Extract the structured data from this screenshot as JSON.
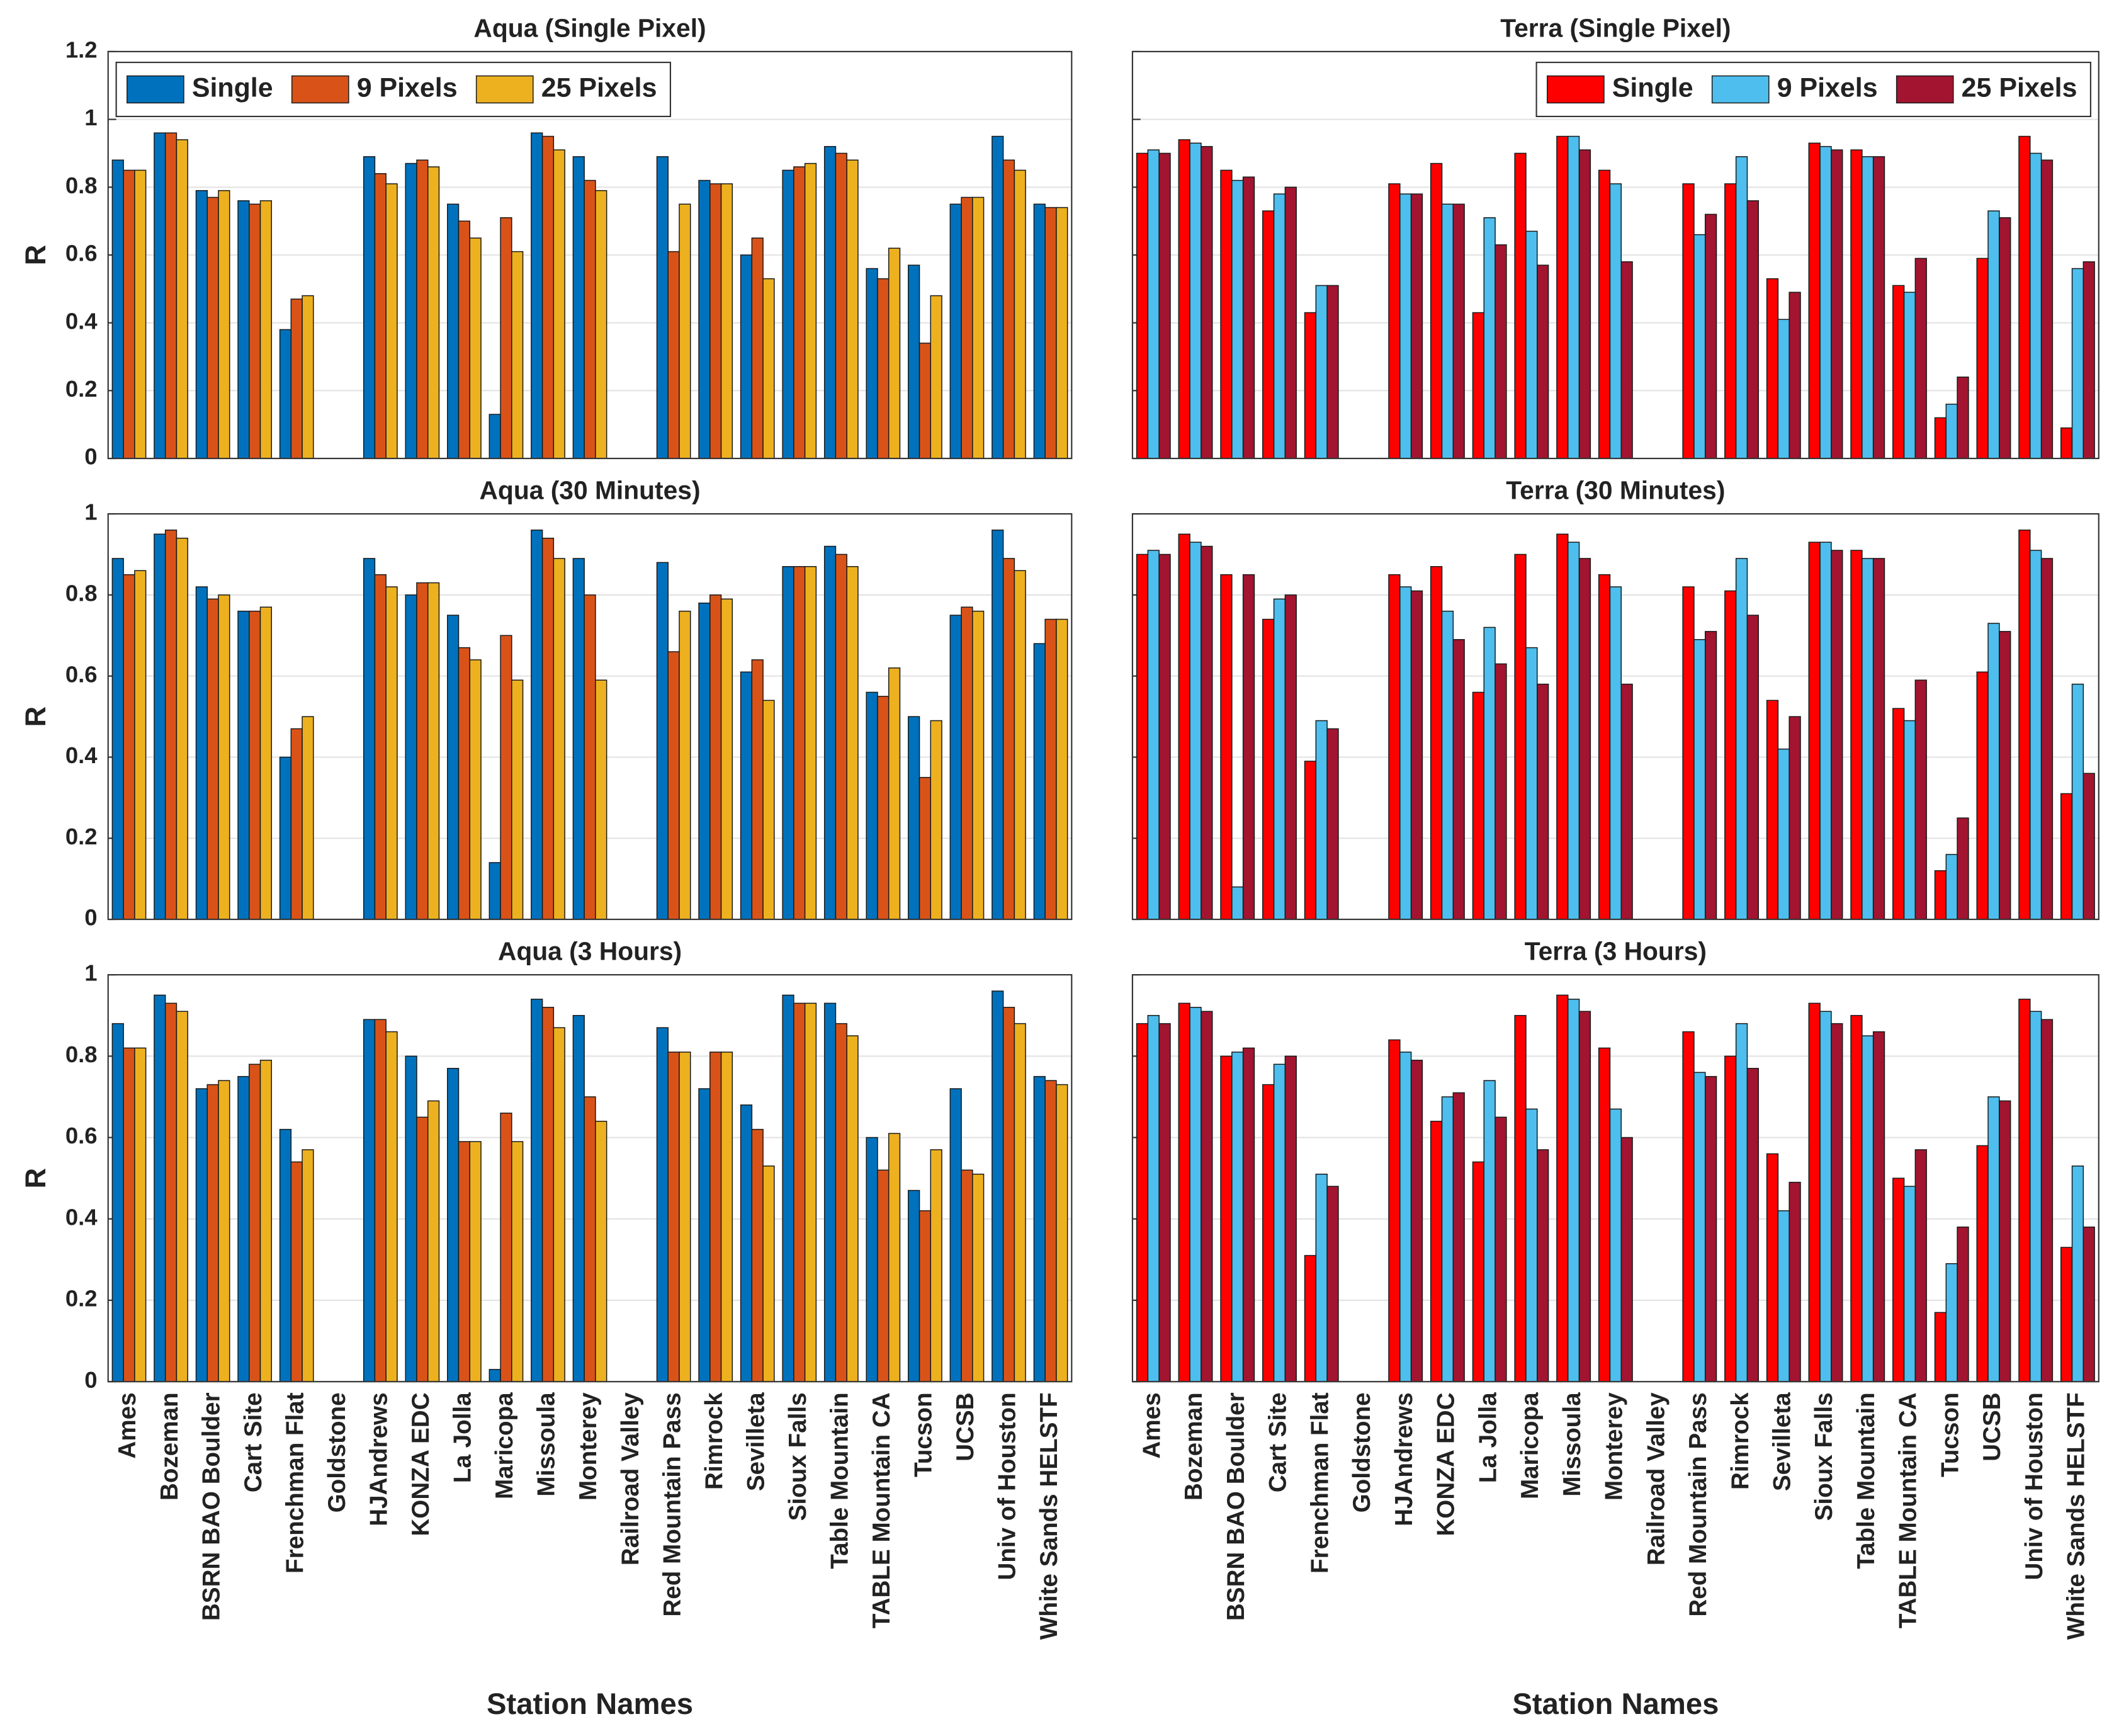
{
  "chart_data": [
    {
      "type": "bar",
      "title": "Aqua (Single Pixel)",
      "ylabel": "R",
      "legend": "upper left",
      "grid": true,
      "ylim": [
        0,
        1.2
      ],
      "yticks": [
        0,
        0.2,
        0.4,
        0.6,
        0.8,
        1,
        1.2
      ],
      "series": [
        {
          "name": "Single",
          "color": "#0072BD",
          "values": [
            0.88,
            0.96,
            0.79,
            0.76,
            0.38,
            null,
            0.89,
            0.87,
            0.75,
            0.13,
            0.96,
            0.89,
            null,
            0.89,
            0.82,
            0.6,
            0.85,
            0.92,
            0.56,
            0.57,
            0.75,
            0.95,
            0.75
          ]
        },
        {
          "name": "9 Pixels",
          "color": "#D95319",
          "values": [
            0.85,
            0.96,
            0.77,
            0.75,
            0.47,
            null,
            0.84,
            0.88,
            0.7,
            0.71,
            0.95,
            0.82,
            null,
            0.61,
            0.81,
            0.65,
            0.86,
            0.9,
            0.53,
            0.34,
            0.77,
            0.88,
            0.74
          ]
        },
        {
          "name": "25 Pixels",
          "color": "#EDB120",
          "values": [
            0.85,
            0.94,
            0.79,
            0.76,
            0.48,
            null,
            0.81,
            0.86,
            0.65,
            0.61,
            0.91,
            0.79,
            null,
            0.75,
            0.81,
            0.53,
            0.87,
            0.88,
            0.62,
            0.48,
            0.77,
            0.85,
            0.74
          ]
        }
      ]
    },
    {
      "type": "bar",
      "title": "Terra (Single Pixel)",
      "legend": "upper right",
      "grid": true,
      "yticklabels": false,
      "ylim": [
        0,
        1.2
      ],
      "yticks": [
        0,
        0.2,
        0.4,
        0.6,
        0.8,
        1,
        1.2
      ],
      "series": [
        {
          "name": "Single",
          "color": "#FF0000",
          "values": [
            0.9,
            0.94,
            0.85,
            0.73,
            0.43,
            null,
            0.81,
            0.87,
            0.43,
            0.9,
            0.95,
            0.85,
            null,
            0.81,
            0.81,
            0.53,
            0.93,
            0.91,
            0.51,
            0.12,
            0.59,
            0.95,
            0.09
          ]
        },
        {
          "name": "9 Pixels",
          "color": "#4DBEEE",
          "values": [
            0.91,
            0.93,
            0.82,
            0.78,
            0.51,
            null,
            0.78,
            0.75,
            0.71,
            0.67,
            0.95,
            0.81,
            null,
            0.66,
            0.89,
            0.41,
            0.92,
            0.89,
            0.49,
            0.16,
            0.73,
            0.9,
            0.56
          ]
        },
        {
          "name": "25 Pixels",
          "color": "#A2142F",
          "values": [
            0.9,
            0.92,
            0.83,
            0.8,
            0.51,
            null,
            0.78,
            0.75,
            0.63,
            0.57,
            0.91,
            0.58,
            null,
            0.72,
            0.76,
            0.49,
            0.91,
            0.89,
            0.59,
            0.24,
            0.71,
            0.88,
            0.58
          ]
        }
      ]
    },
    {
      "type": "bar",
      "title": "Aqua (30 Minutes)",
      "ylabel": "R",
      "grid": true,
      "ylim": [
        0,
        1
      ],
      "yticks": [
        0,
        0.2,
        0.4,
        0.6,
        0.8,
        1
      ],
      "series": [
        {
          "color": "#0072BD",
          "values": [
            0.89,
            0.95,
            0.82,
            0.76,
            0.4,
            null,
            0.89,
            0.8,
            0.75,
            0.14,
            0.96,
            0.89,
            null,
            0.88,
            0.78,
            0.61,
            0.87,
            0.92,
            0.56,
            0.5,
            0.75,
            0.96,
            0.68
          ]
        },
        {
          "color": "#D95319",
          "values": [
            0.85,
            0.96,
            0.79,
            0.76,
            0.47,
            null,
            0.85,
            0.83,
            0.67,
            0.7,
            0.94,
            0.8,
            null,
            0.66,
            0.8,
            0.64,
            0.87,
            0.9,
            0.55,
            0.35,
            0.77,
            0.89,
            0.74
          ]
        },
        {
          "color": "#EDB120",
          "values": [
            0.86,
            0.94,
            0.8,
            0.77,
            0.5,
            null,
            0.82,
            0.83,
            0.64,
            0.59,
            0.89,
            0.59,
            null,
            0.76,
            0.79,
            0.54,
            0.87,
            0.87,
            0.62,
            0.49,
            0.76,
            0.86,
            0.74
          ]
        }
      ]
    },
    {
      "type": "bar",
      "title": "Terra (30 Minutes)",
      "grid": true,
      "yticklabels": false,
      "ylim": [
        0,
        1
      ],
      "yticks": [
        0,
        0.2,
        0.4,
        0.6,
        0.8,
        1
      ],
      "series": [
        {
          "color": "#FF0000",
          "values": [
            0.9,
            0.95,
            0.85,
            0.74,
            0.39,
            null,
            0.85,
            0.87,
            0.56,
            0.9,
            0.95,
            0.85,
            null,
            0.82,
            0.81,
            0.54,
            0.93,
            0.91,
            0.52,
            0.12,
            0.61,
            0.96,
            0.31
          ]
        },
        {
          "color": "#4DBEEE",
          "values": [
            0.91,
            0.93,
            0.08,
            0.79,
            0.49,
            null,
            0.82,
            0.76,
            0.72,
            0.67,
            0.93,
            0.82,
            null,
            0.69,
            0.89,
            0.42,
            0.93,
            0.89,
            0.49,
            0.16,
            0.73,
            0.91,
            0.58
          ]
        },
        {
          "color": "#A2142F",
          "values": [
            0.9,
            0.92,
            0.85,
            0.8,
            0.47,
            null,
            0.81,
            0.69,
            0.63,
            0.58,
            0.89,
            0.58,
            null,
            0.71,
            0.75,
            0.5,
            0.91,
            0.89,
            0.59,
            0.25,
            0.71,
            0.89,
            0.36
          ]
        }
      ]
    },
    {
      "type": "bar",
      "title": "Aqua (3 Hours)",
      "ylabel": "R",
      "xlabel": "Station Names",
      "grid": true,
      "ylim": [
        0,
        1
      ],
      "yticks": [
        0,
        0.2,
        0.4,
        0.6,
        0.8,
        1
      ],
      "categories": [
        "Ames",
        "Bozeman",
        "BSRN BAO Boulder",
        "Cart Site",
        "Frenchman Flat",
        "Goldstone",
        "HJAndrews",
        "KONZA EDC",
        "La Jolla",
        "Maricopa",
        "Missoula",
        "Monterey",
        "Railroad Valley",
        "Red Mountain Pass",
        "Rimrock",
        "Sevilleta",
        "Sioux Falls",
        "Table Mountain",
        "TABLE Mountain CA",
        "Tucson",
        "UCSB",
        "Univ of Houston",
        "White Sands HELSTF"
      ],
      "series": [
        {
          "color": "#0072BD",
          "values": [
            0.88,
            0.95,
            0.72,
            0.75,
            0.62,
            null,
            0.89,
            0.8,
            0.77,
            0.03,
            0.94,
            0.9,
            null,
            0.87,
            0.72,
            0.68,
            0.95,
            0.93,
            0.6,
            0.47,
            0.72,
            0.96,
            0.75
          ]
        },
        {
          "color": "#D95319",
          "values": [
            0.82,
            0.93,
            0.73,
            0.78,
            0.54,
            null,
            0.89,
            0.65,
            0.59,
            0.66,
            0.92,
            0.7,
            null,
            0.81,
            0.81,
            0.62,
            0.93,
            0.88,
            0.52,
            0.42,
            0.52,
            0.92,
            0.74
          ]
        },
        {
          "color": "#EDB120",
          "values": [
            0.82,
            0.91,
            0.74,
            0.79,
            0.57,
            null,
            0.86,
            0.69,
            0.59,
            0.59,
            0.87,
            0.64,
            null,
            0.81,
            0.81,
            0.53,
            0.93,
            0.85,
            0.61,
            0.57,
            0.51,
            0.88,
            0.73
          ]
        }
      ]
    },
    {
      "type": "bar",
      "title": "Terra (3 Hours)",
      "xlabel": "Station Names",
      "grid": true,
      "yticklabels": false,
      "ylim": [
        0,
        1
      ],
      "yticks": [
        0,
        0.2,
        0.4,
        0.6,
        0.8,
        1
      ],
      "categories": [
        "Ames",
        "Bozeman",
        "BSRN BAO Boulder",
        "Cart Site",
        "Frenchman Flat",
        "Goldstone",
        "HJAndrews",
        "KONZA EDC",
        "La Jolla",
        "Maricopa",
        "Missoula",
        "Monterey",
        "Railroad Valley",
        "Red Mountain Pass",
        "Rimrock",
        "Sevilleta",
        "Sioux Falls",
        "Table Mountain",
        "TABLE Mountain CA",
        "Tucson",
        "UCSB",
        "Univ of Houston",
        "White Sands HELSTF"
      ],
      "series": [
        {
          "color": "#FF0000",
          "values": [
            0.88,
            0.93,
            0.8,
            0.73,
            0.31,
            null,
            0.84,
            0.64,
            0.54,
            0.9,
            0.95,
            0.82,
            null,
            0.86,
            0.8,
            0.56,
            0.93,
            0.9,
            0.5,
            0.17,
            0.58,
            0.94,
            0.33
          ]
        },
        {
          "color": "#4DBEEE",
          "values": [
            0.9,
            0.92,
            0.81,
            0.78,
            0.51,
            null,
            0.81,
            0.7,
            0.74,
            0.67,
            0.94,
            0.67,
            null,
            0.76,
            0.88,
            0.42,
            0.91,
            0.85,
            0.48,
            0.29,
            0.7,
            0.91,
            0.53
          ]
        },
        {
          "color": "#A2142F",
          "values": [
            0.88,
            0.91,
            0.82,
            0.8,
            0.48,
            null,
            0.79,
            0.71,
            0.65,
            0.57,
            0.91,
            0.6,
            null,
            0.75,
            0.77,
            0.49,
            0.88,
            0.86,
            0.57,
            0.38,
            0.69,
            0.89,
            0.38
          ]
        }
      ]
    }
  ]
}
